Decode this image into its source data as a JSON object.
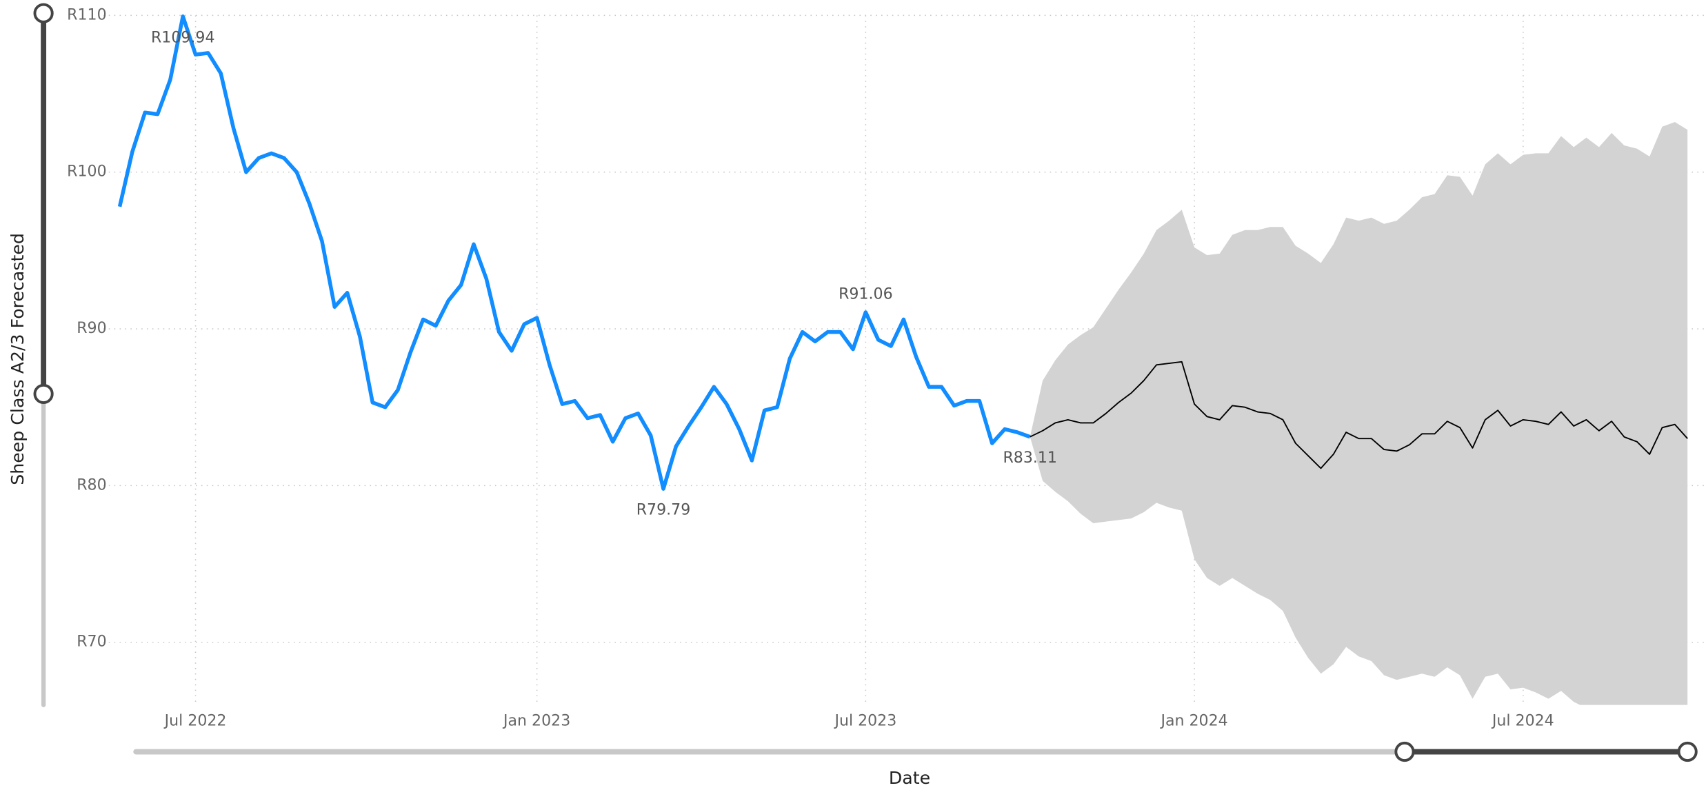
{
  "chart_data": {
    "type": "line",
    "y_label": "Sheep Class A2/3 Forecasted",
    "x_label": "Date",
    "grid": true,
    "ylim": [
      66,
      110
    ],
    "yticks": [
      {
        "value": 70,
        "label": "R70"
      },
      {
        "value": 80,
        "label": "R80"
      },
      {
        "value": 90,
        "label": "R90"
      },
      {
        "value": 100,
        "label": "R100"
      },
      {
        "value": 110,
        "label": "R110"
      }
    ],
    "categories": [
      null,
      null,
      null,
      null,
      null,
      null,
      "Jul 2022",
      null,
      null,
      null,
      null,
      null,
      null,
      null,
      null,
      null,
      null,
      null,
      null,
      null,
      null,
      null,
      null,
      null,
      null,
      null,
      null,
      null,
      null,
      null,
      null,
      null,
      null,
      "Jan 2023",
      null,
      null,
      null,
      null,
      null,
      null,
      null,
      null,
      null,
      null,
      null,
      null,
      null,
      null,
      null,
      null,
      null,
      null,
      null,
      null,
      null,
      null,
      null,
      null,
      null,
      "Jul 2023",
      null,
      null,
      null,
      null,
      null,
      null,
      null,
      null,
      null,
      null,
      null,
      null,
      null,
      null,
      null,
      null,
      null,
      null,
      null,
      null,
      null,
      null,
      null,
      null,
      null,
      "Jan 2024",
      null,
      null,
      null,
      null,
      null,
      null,
      null,
      null,
      null,
      null,
      null,
      null,
      null,
      null,
      null,
      null,
      null,
      null,
      null,
      null,
      null,
      null,
      null,
      null,
      null,
      "Jul 2024",
      null,
      null,
      null,
      null,
      null,
      null,
      null,
      null,
      null,
      null,
      null,
      null,
      null
    ],
    "series": [
      {
        "color": "#118DFF",
        "values": [
          97.8,
          101.3,
          103.8,
          103.7,
          105.9,
          109.94,
          107.5,
          107.6,
          106.3,
          102.8,
          100.0,
          100.9,
          101.2,
          100.9,
          100.0,
          98.0,
          95.6,
          91.4,
          92.3,
          89.5,
          85.3,
          85.0,
          86.1,
          88.5,
          90.6,
          90.2,
          91.8,
          92.8,
          95.4,
          93.2,
          89.8,
          88.6,
          90.3,
          90.7,
          87.7,
          85.2,
          85.4,
          84.3,
          84.5,
          82.8,
          84.3,
          84.6,
          83.2,
          79.79,
          82.5,
          83.8,
          85.0,
          86.3,
          85.2,
          83.6,
          81.6,
          84.8,
          85.0,
          88.1,
          89.8,
          89.2,
          89.8,
          89.8,
          88.7,
          91.06,
          89.3,
          88.9,
          90.6,
          88.2,
          86.3,
          86.3,
          85.1,
          85.4,
          85.4,
          82.7,
          83.6,
          83.4,
          83.11,
          null,
          null,
          null,
          null,
          null,
          null,
          null,
          null,
          null,
          null,
          null,
          null,
          null,
          null,
          null,
          null,
          null,
          null,
          null,
          null,
          null,
          null,
          null,
          null,
          null,
          null,
          null,
          null,
          null,
          null,
          null,
          null,
          null,
          null,
          null,
          null,
          null,
          null,
          null,
          null,
          null,
          null,
          null,
          null,
          null,
          null,
          null,
          null,
          null,
          null,
          null,
          null
        ],
        "value_labels": [
          null,
          null,
          null,
          null,
          null,
          "R109.94",
          null,
          null,
          null,
          null,
          null,
          null,
          null,
          null,
          null,
          null,
          null,
          null,
          null,
          null,
          null,
          null,
          null,
          null,
          null,
          null,
          null,
          null,
          null,
          null,
          null,
          null,
          null,
          null,
          null,
          null,
          null,
          null,
          null,
          null,
          null,
          null,
          null,
          "R79.79",
          null,
          null,
          null,
          null,
          null,
          null,
          null,
          null,
          null,
          null,
          null,
          null,
          null,
          null,
          null,
          "R91.06",
          null,
          null,
          null,
          null,
          null,
          null,
          null,
          null,
          null,
          null,
          null,
          null,
          "R83.11",
          null,
          null,
          null,
          null,
          null,
          null,
          null,
          null,
          null,
          null,
          null,
          null,
          null,
          null,
          null,
          null,
          null,
          null,
          null,
          null,
          null,
          null,
          null,
          null,
          null,
          null,
          null,
          null,
          null,
          null,
          null,
          null,
          null,
          null,
          null,
          null,
          null,
          null,
          null,
          null,
          null,
          null,
          null,
          null,
          null,
          null,
          null,
          null,
          null,
          null,
          null,
          null
        ]
      },
      {
        "color": "#000000",
        "values": [
          null,
          null,
          null,
          null,
          null,
          null,
          null,
          null,
          null,
          null,
          null,
          null,
          null,
          null,
          null,
          null,
          null,
          null,
          null,
          null,
          null,
          null,
          null,
          null,
          null,
          null,
          null,
          null,
          null,
          null,
          null,
          null,
          null,
          null,
          null,
          null,
          null,
          null,
          null,
          null,
          null,
          null,
          null,
          null,
          null,
          null,
          null,
          null,
          null,
          null,
          null,
          null,
          null,
          null,
          null,
          null,
          null,
          null,
          null,
          null,
          null,
          null,
          null,
          null,
          null,
          null,
          null,
          null,
          null,
          null,
          null,
          null,
          83.11,
          83.5,
          84.0,
          84.2,
          84.0,
          84.0,
          84.6,
          85.3,
          85.9,
          86.7,
          87.7,
          87.8,
          87.9,
          85.2,
          84.4,
          84.2,
          85.1,
          85.0,
          84.7,
          84.6,
          84.2,
          82.7,
          81.9,
          81.1,
          82.0,
          83.4,
          83.0,
          83.0,
          82.3,
          82.2,
          82.6,
          83.3,
          83.3,
          84.1,
          83.7,
          82.4,
          84.2,
          84.8,
          83.8,
          84.2,
          84.1,
          83.9,
          84.7,
          83.8,
          84.2,
          83.5,
          84.1,
          83.1,
          82.8,
          82.0,
          83.7,
          83.9,
          83.0
        ]
      }
    ],
    "band": {
      "color": "#D3D3D3",
      "upper": [
        null,
        null,
        null,
        null,
        null,
        null,
        null,
        null,
        null,
        null,
        null,
        null,
        null,
        null,
        null,
        null,
        null,
        null,
        null,
        null,
        null,
        null,
        null,
        null,
        null,
        null,
        null,
        null,
        null,
        null,
        null,
        null,
        null,
        null,
        null,
        null,
        null,
        null,
        null,
        null,
        null,
        null,
        null,
        null,
        null,
        null,
        null,
        null,
        null,
        null,
        null,
        null,
        null,
        null,
        null,
        null,
        null,
        null,
        null,
        null,
        null,
        null,
        null,
        null,
        null,
        null,
        null,
        null,
        null,
        null,
        null,
        null,
        83.11,
        86.7,
        88.0,
        89.0,
        89.6,
        90.1,
        91.3,
        92.5,
        93.6,
        94.8,
        96.3,
        96.9,
        97.6,
        95.2,
        94.7,
        94.8,
        96.0,
        96.3,
        96.3,
        96.5,
        96.5,
        95.3,
        94.8,
        94.2,
        95.4,
        97.1,
        96.9,
        97.1,
        96.7,
        96.9,
        97.6,
        98.4,
        98.6,
        99.8,
        99.7,
        98.5,
        100.5,
        101.2,
        100.5,
        101.1,
        101.2,
        101.2,
        102.3,
        101.6,
        102.2,
        101.6,
        102.5,
        101.7,
        101.5,
        101.0,
        102.9,
        103.2,
        102.7
      ],
      "lower": [
        null,
        null,
        null,
        null,
        null,
        null,
        null,
        null,
        null,
        null,
        null,
        null,
        null,
        null,
        null,
        null,
        null,
        null,
        null,
        null,
        null,
        null,
        null,
        null,
        null,
        null,
        null,
        null,
        null,
        null,
        null,
        null,
        null,
        null,
        null,
        null,
        null,
        null,
        null,
        null,
        null,
        null,
        null,
        null,
        null,
        null,
        null,
        null,
        null,
        null,
        null,
        null,
        null,
        null,
        null,
        null,
        null,
        null,
        null,
        null,
        null,
        null,
        null,
        null,
        null,
        null,
        null,
        null,
        null,
        null,
        null,
        null,
        83.11,
        80.3,
        79.6,
        79.0,
        78.2,
        77.6,
        77.7,
        77.8,
        77.9,
        78.3,
        78.9,
        78.6,
        78.4,
        75.3,
        74.1,
        73.6,
        74.1,
        73.6,
        73.1,
        72.7,
        72.0,
        70.3,
        69.0,
        68.0,
        68.6,
        69.7,
        69.1,
        68.8,
        67.9,
        67.6,
        67.8,
        68.0,
        67.8,
        68.4,
        67.9,
        66.4,
        67.8,
        68.0,
        67.0,
        67.1,
        66.8,
        66.4,
        66.9,
        66.2,
        65.8,
        65.9,
        65.8,
        65.9,
        65.7,
        65.6,
        65.7,
        65.6,
        65.8
      ]
    }
  }
}
